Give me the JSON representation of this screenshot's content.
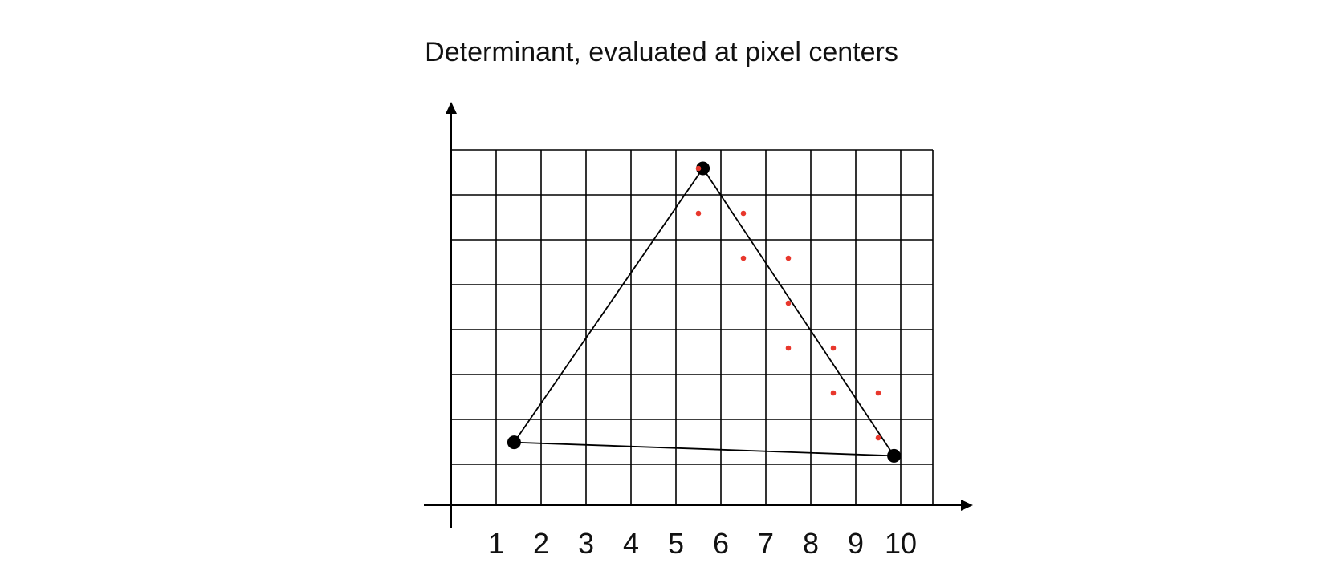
{
  "title": "Determinant, evaluated at pixel centers",
  "x_tick_labels": [
    "1",
    "2",
    "3",
    "4",
    "5",
    "6",
    "7",
    "8",
    "9",
    "10"
  ],
  "grid": {
    "columns": 11,
    "rows": 8
  },
  "triangle": {
    "vertices": [
      {
        "name": "top",
        "x": 5.6,
        "y": 7.5
      },
      {
        "name": "bottom-left",
        "x": 1.4,
        "y": 1.4
      },
      {
        "name": "bottom-right",
        "x": 9.85,
        "y": 1.1
      }
    ]
  },
  "evaluated_points": [
    {
      "x": 5.5,
      "y": 7.5
    },
    {
      "x": 5.5,
      "y": 6.5
    },
    {
      "x": 6.5,
      "y": 6.5
    },
    {
      "x": 6.5,
      "y": 5.5
    },
    {
      "x": 7.5,
      "y": 5.5
    },
    {
      "x": 7.5,
      "y": 4.5
    },
    {
      "x": 7.5,
      "y": 3.5
    },
    {
      "x": 8.5,
      "y": 3.5
    },
    {
      "x": 8.5,
      "y": 2.5
    },
    {
      "x": 9.5,
      "y": 2.5
    },
    {
      "x": 9.5,
      "y": 1.5
    }
  ],
  "colors": {
    "grid": "#000000",
    "triangle": "#000000",
    "vertex": "#000000",
    "points": "#e8372c",
    "text": "#111111"
  }
}
